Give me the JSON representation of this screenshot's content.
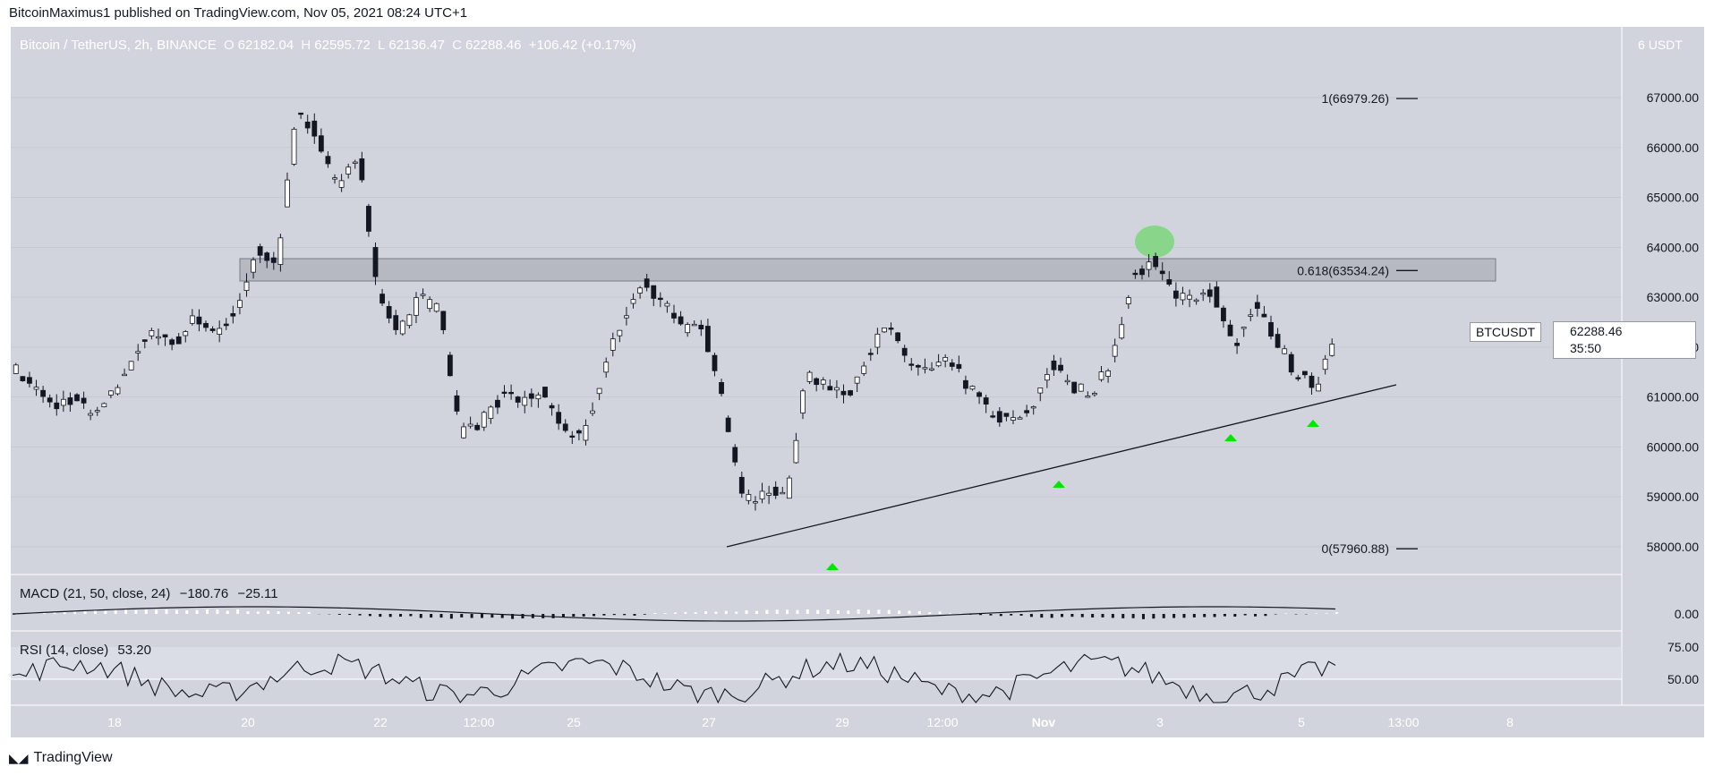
{
  "header": {
    "published": "BitcoinMaximus1 published on TradingView.com, Nov 05, 2021 08:24 UTC+1"
  },
  "legend": {
    "symbol": "Bitcoin / TetherUS, 2h, BINANCE",
    "o_label": "O",
    "o": "62182.04",
    "h_label": "H",
    "h": "62595.72",
    "l_label": "L",
    "l": "62136.47",
    "c_label": "C",
    "c": "62288.46",
    "change": "+106.42 (+0.17%)"
  },
  "axis": {
    "unit_left": "6",
    "unit": "USDT",
    "y_ticks": [
      "67000.00",
      "66000.00",
      "65000.00",
      "64000.00",
      "63000.00",
      "62000.00",
      "61000.00",
      "60000.00",
      "59000.00",
      "58000.00"
    ],
    "x_ticks": [
      {
        "label": "18",
        "bold": false
      },
      {
        "label": "20",
        "bold": false
      },
      {
        "label": "22",
        "bold": false
      },
      {
        "label": "12:00",
        "bold": false
      },
      {
        "label": "25",
        "bold": false
      },
      {
        "label": "27",
        "bold": false
      },
      {
        "label": "29",
        "bold": false
      },
      {
        "label": "12:00",
        "bold": false
      },
      {
        "label": "Nov",
        "bold": true
      },
      {
        "label": "3",
        "bold": false
      },
      {
        "label": "5",
        "bold": false
      },
      {
        "label": "13:00",
        "bold": false
      },
      {
        "label": "8",
        "bold": false
      }
    ]
  },
  "price_tag": {
    "symbol": "BTCUSDT",
    "price": "62288.46",
    "countdown": "35:50"
  },
  "fib": {
    "level_1": "1(66979.26)",
    "level_0618": "0.618(63534.24)",
    "level_0": "0(57960.88)"
  },
  "macd": {
    "label": "MACD (21, 50, close, 24)",
    "v1": "−180.76",
    "v2": "−25.11",
    "axis": "0.00"
  },
  "rsi": {
    "label": "RSI (14, close)",
    "value": "53.20",
    "axis_top": "75.00",
    "axis_mid": "50.00"
  },
  "footer": {
    "brand": "TradingView"
  },
  "colors": {
    "background": "#d1d4dc",
    "bull": "#ffffff",
    "bear": "#131722",
    "resistance_zone": "#9598a1",
    "marker": "#00e600",
    "highlight": "#7cd67c"
  },
  "chart_data": {
    "type": "candlestick",
    "symbol": "Bitcoin / TetherUS",
    "timeframe": "2h",
    "exchange": "BINANCE",
    "y_unit": "USDT",
    "ylim": [
      57500,
      67500
    ],
    "close_path": [
      [
        0,
        61600
      ],
      [
        6,
        61200
      ],
      [
        12,
        60800
      ],
      [
        18,
        61000
      ],
      [
        24,
        60600
      ],
      [
        30,
        61100
      ],
      [
        36,
        61900
      ],
      [
        42,
        62300
      ],
      [
        48,
        62100
      ],
      [
        54,
        62600
      ],
      [
        60,
        62300
      ],
      [
        66,
        62700
      ],
      [
        72,
        63900
      ],
      [
        78,
        63700
      ],
      [
        84,
        66800
      ],
      [
        90,
        66200
      ],
      [
        96,
        65100
      ],
      [
        102,
        65900
      ],
      [
        108,
        63000
      ],
      [
        114,
        62300
      ],
      [
        120,
        63000
      ],
      [
        126,
        62700
      ],
      [
        132,
        60300
      ],
      [
        138,
        60500
      ],
      [
        144,
        61000
      ],
      [
        150,
        60900
      ],
      [
        156,
        61100
      ],
      [
        162,
        60400
      ],
      [
        168,
        60100
      ],
      [
        174,
        61500
      ],
      [
        180,
        62600
      ],
      [
        186,
        63300
      ],
      [
        192,
        62900
      ],
      [
        198,
        62400
      ],
      [
        204,
        62300
      ],
      [
        210,
        60700
      ],
      [
        216,
        58900
      ],
      [
        222,
        59100
      ],
      [
        228,
        59000
      ],
      [
        234,
        61400
      ],
      [
        240,
        61300
      ],
      [
        246,
        61000
      ],
      [
        252,
        61900
      ],
      [
        258,
        62400
      ],
      [
        264,
        61700
      ],
      [
        270,
        61500
      ],
      [
        276,
        61700
      ],
      [
        282,
        61200
      ],
      [
        288,
        60700
      ],
      [
        294,
        60500
      ],
      [
        300,
        60700
      ],
      [
        306,
        61700
      ],
      [
        312,
        61200
      ],
      [
        318,
        61100
      ],
      [
        324,
        61700
      ],
      [
        330,
        63400
      ],
      [
        336,
        63700
      ],
      [
        342,
        63100
      ],
      [
        348,
        63000
      ],
      [
        354,
        63100
      ],
      [
        360,
        62000
      ],
      [
        366,
        62800
      ],
      [
        372,
        62200
      ],
      [
        378,
        61500
      ],
      [
        384,
        61200
      ],
      [
        390,
        62288
      ]
    ],
    "resistance_zone": [
      63300,
      63750
    ],
    "fibonacci": [
      {
        "level": "1",
        "price": 66979.26
      },
      {
        "level": "0.618",
        "price": 63534.24
      },
      {
        "level": "0",
        "price": 57960.88
      }
    ],
    "ascending_support": [
      {
        "date": "Oct 27",
        "price": 57960
      },
      {
        "date": "Nov 5",
        "price": 61150
      }
    ],
    "support_markers": [
      "Oct 28",
      "Nov 1",
      "Nov 3",
      "Nov 4"
    ],
    "macd": {
      "params": "21, 50, close, 24",
      "macd": -180.76,
      "signal": -25.11
    },
    "rsi": {
      "params": "14, close",
      "value": 53.2
    }
  }
}
